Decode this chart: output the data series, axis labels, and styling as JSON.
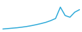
{
  "x": [
    0,
    1,
    2,
    3,
    4,
    5,
    6,
    7,
    8,
    9,
    10,
    11,
    12,
    13,
    14,
    15,
    16
  ],
  "y": [
    2.0,
    2.5,
    3.0,
    3.5,
    4.2,
    5.0,
    6.0,
    7.2,
    8.5,
    10.0,
    12.0,
    14.5,
    28.0,
    18.0,
    16.0,
    22.0,
    25.0
  ],
  "line_color": "#2aa8d8",
  "linewidth": 1.1,
  "ylim": [
    0,
    35
  ],
  "background_color": "#ffffff"
}
